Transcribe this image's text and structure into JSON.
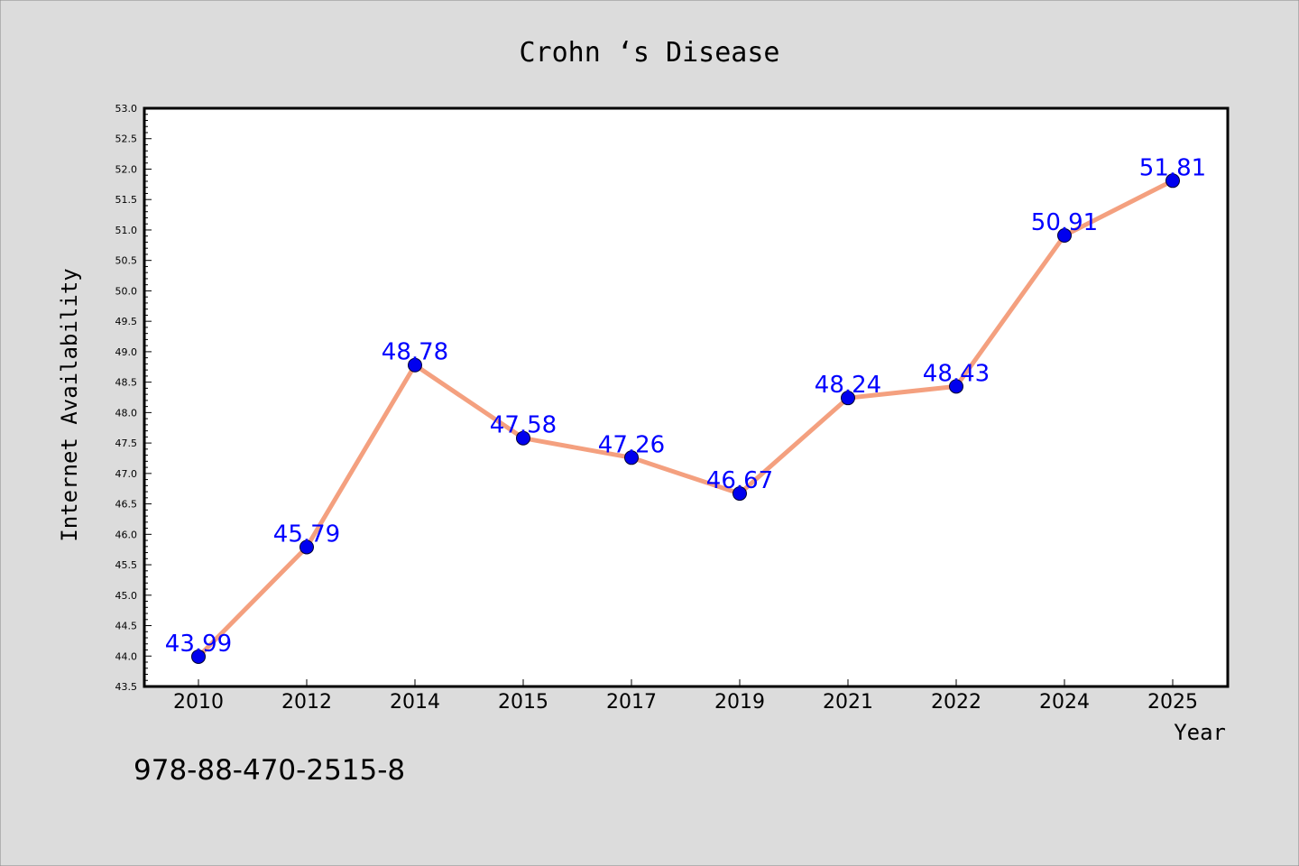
{
  "chart_data": {
    "type": "line",
    "title": "Crohn ‘s Disease",
    "xlabel": "Year",
    "ylabel": "Internet Availability",
    "categories": [
      "2010",
      "2012",
      "2014",
      "2015",
      "2017",
      "2019",
      "2021",
      "2022",
      "2024",
      "2025"
    ],
    "series": [
      {
        "values": [
          43.99,
          45.79,
          48.78,
          47.58,
          47.26,
          46.67,
          48.24,
          48.43,
          50.91,
          51.81
        ],
        "labels": [
          "43.99",
          "45.79",
          "48.78",
          "47.58",
          "47.26",
          "46.67",
          "48.24",
          "48.43",
          "50.91",
          "51.81"
        ],
        "line_color": "#f4a07f",
        "marker_color": "#0000ee"
      }
    ],
    "ylim": [
      43.5,
      53.0
    ],
    "yticks": [
      "43.5",
      "44.0",
      "44.5",
      "45.0",
      "45.5",
      "46.0",
      "46.5",
      "47.0",
      "47.5",
      "48.0",
      "48.5",
      "49.0",
      "49.5",
      "50.0",
      "50.5",
      "51.0",
      "51.5",
      "52.0",
      "52.5",
      "53.0"
    ],
    "grid": false,
    "label_color": "#0000ff"
  },
  "footer": {
    "isbn": "978-88-470-2515-8"
  },
  "colors": {
    "background": "#dcdcdc",
    "plot_background": "#ffffff"
  }
}
